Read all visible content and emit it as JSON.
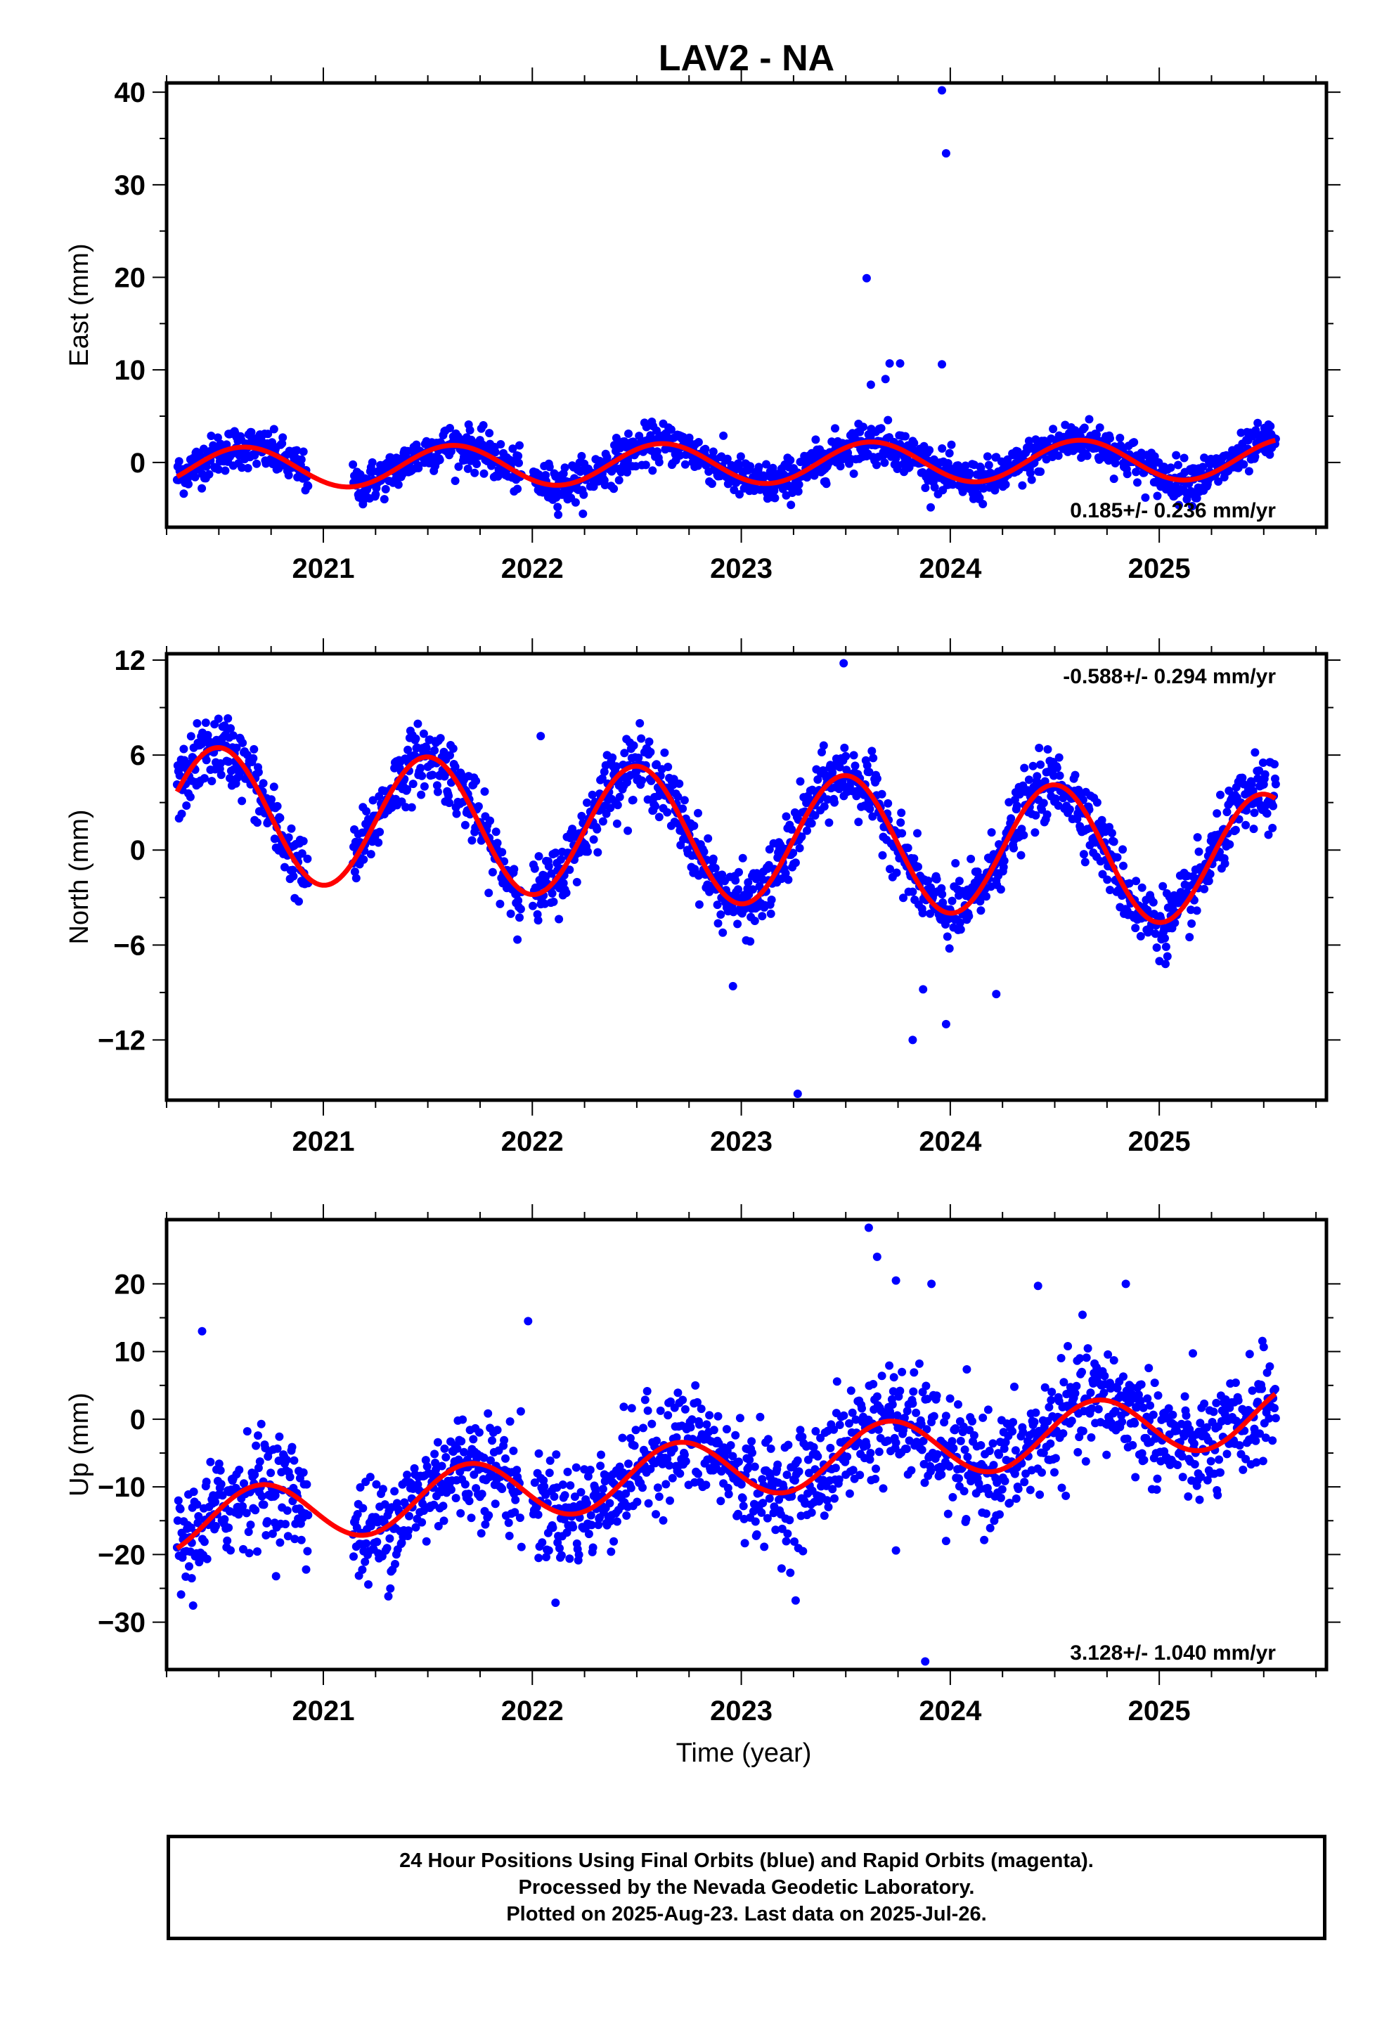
{
  "chart_data": {
    "type": "scatter",
    "title": "LAV2 - NA",
    "xlabel": "Time (year)",
    "x_tick_labels": [
      "2021",
      "2022",
      "2023",
      "2024",
      "2025"
    ],
    "x_range": [
      2020.25,
      2025.8
    ],
    "data_span": [
      "2020-04",
      "2025-07-26"
    ],
    "marker_color": "#0000ff",
    "fit_color": "#ff0000",
    "panels": [
      {
        "name": "east",
        "ylabel": "East (mm)",
        "ylim": [
          -7,
          41
        ],
        "y_ticks": [
          0,
          10,
          20,
          30,
          40
        ],
        "y_tick_labels": [
          "0",
          "10",
          "20",
          "30",
          "40"
        ],
        "rate_text": "0.185+/- 0.236 mm/yr",
        "rate_position": "bottom-right",
        "model": {
          "rate": 0.185,
          "offset": -0.1,
          "amplitude": 2.2,
          "peak_phase": 0.62,
          "annual_amp_growth": 0.0
        },
        "scatter_sd": 1.1,
        "outliers": [
          {
            "x": 2023.96,
            "y": 40.2
          },
          {
            "x": 2023.98,
            "y": 33.4
          },
          {
            "x": 2023.6,
            "y": 19.9
          },
          {
            "x": 2023.71,
            "y": 10.7
          },
          {
            "x": 2023.76,
            "y": 10.7
          },
          {
            "x": 2023.96,
            "y": 10.6
          },
          {
            "x": 2023.62,
            "y": 8.4
          },
          {
            "x": 2023.69,
            "y": 9.0
          }
        ]
      },
      {
        "name": "north",
        "ylabel": "North (mm)",
        "ylim": [
          -15.8,
          12.4
        ],
        "y_ticks": [
          -12,
          -6,
          0,
          6,
          12
        ],
        "y_tick_labels": [
          "−12",
          "−6",
          "0",
          "6",
          "12"
        ],
        "rate_text": "-0.588+/- 0.294 mm/yr",
        "rate_position": "top-right",
        "model": {
          "rate": -0.588,
          "offset": 0.8,
          "amplitude": 4.2,
          "peak_phase": 0.5,
          "annual_amp_growth": 0.0
        },
        "scatter_sd": 1.05,
        "outliers": [
          {
            "x": 2023.27,
            "y": -15.4
          },
          {
            "x": 2023.82,
            "y": -12.0
          },
          {
            "x": 2023.98,
            "y": -11.0
          },
          {
            "x": 2024.22,
            "y": -9.1
          },
          {
            "x": 2022.96,
            "y": -8.6
          },
          {
            "x": 2023.87,
            "y": -8.8
          },
          {
            "x": 2022.04,
            "y": 7.2
          },
          {
            "x": 2023.49,
            "y": 11.8
          }
        ]
      },
      {
        "name": "up",
        "ylabel": "Up (mm)",
        "ylim": [
          -37,
          29.5
        ],
        "y_ticks": [
          -30,
          -20,
          -10,
          0,
          10,
          20
        ],
        "y_tick_labels": [
          "−30",
          "−20",
          "−10",
          "0",
          "10",
          "20"
        ],
        "rate_text": "3.128+/- 1.040 mm/yr",
        "rate_position": "bottom-right",
        "model": {
          "rate": 3.128,
          "offset": -7.0,
          "amplitude": 4.5,
          "peak_phase": 0.7,
          "annual_amp_growth": 0.0
        },
        "scatter_sd": 4.0,
        "outliers": [
          {
            "x": 2023.88,
            "y": -35.8
          },
          {
            "x": 2023.26,
            "y": -26.8
          },
          {
            "x": 2020.37,
            "y": -23.5
          },
          {
            "x": 2022.03,
            "y": -20.5
          },
          {
            "x": 2023.61,
            "y": 28.3
          },
          {
            "x": 2023.65,
            "y": 24.0
          },
          {
            "x": 2023.74,
            "y": 20.5
          },
          {
            "x": 2023.91,
            "y": 20.0
          },
          {
            "x": 2024.42,
            "y": 19.7
          },
          {
            "x": 2024.84,
            "y": 20.0
          },
          {
            "x": 2021.98,
            "y": 14.5
          },
          {
            "x": 2020.42,
            "y": 13.0
          },
          {
            "x": 2023.74,
            "y": -19.4
          },
          {
            "x": 2023.98,
            "y": -18.0
          }
        ]
      }
    ]
  },
  "footer": {
    "line1": "24 Hour Positions Using Final Orbits (blue) and Rapid Orbits (magenta).",
    "line2": "Processed by the Nevada Geodetic Laboratory.",
    "line3": "Plotted on 2025-Aug-23. Last data on 2025-Jul-26."
  }
}
